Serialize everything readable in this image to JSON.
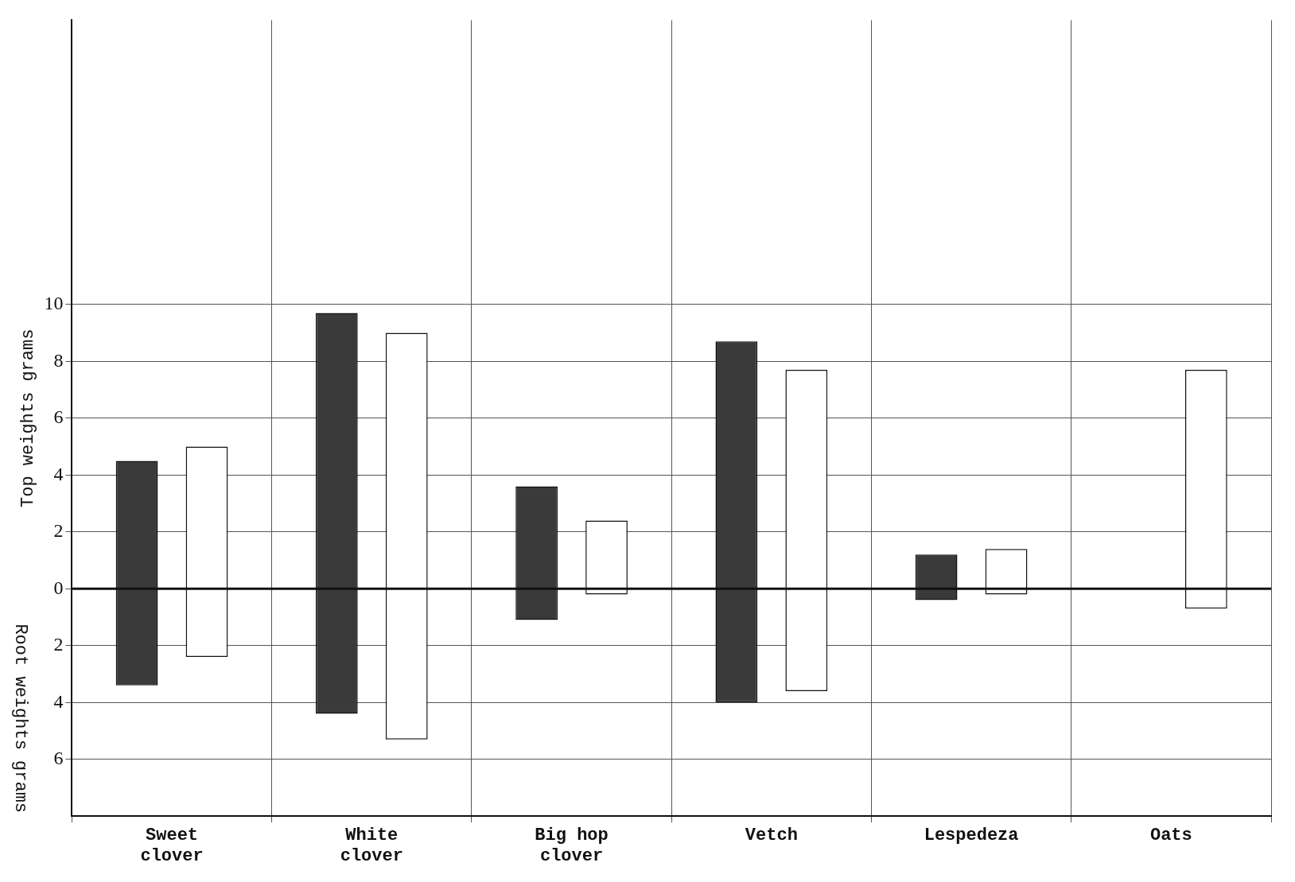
{
  "chart_data": {
    "type": "bar",
    "ylabel": "Top weights grams",
    "annotations": [
      "Root weights grams"
    ],
    "categories": [
      "Sweet clover",
      "White clover",
      "Big hop clover",
      "Vetch",
      "Lespedeza",
      "Oats"
    ],
    "series": [
      {
        "color": "#3a3a3a",
        "base": [
          -3.4,
          -4.4,
          -1.1,
          -4.0,
          -0.4,
          null
        ],
        "values": [
          7.9,
          14.1,
          4.7,
          12.7,
          1.6,
          null
        ]
      },
      {
        "color": "#ffffff",
        "base": [
          -2.4,
          -5.3,
          -0.2,
          -3.6,
          -0.2,
          -0.7
        ],
        "values": [
          7.4,
          14.3,
          2.6,
          11.3,
          1.6,
          8.4
        ]
      }
    ],
    "ylim": [
      -8,
      20
    ],
    "yticks": [
      {
        "value": -6,
        "label": "6"
      },
      {
        "value": -4,
        "label": "4"
      },
      {
        "value": -2,
        "label": "2"
      },
      0,
      2,
      4,
      6,
      8,
      10
    ],
    "ref_lines": [
      {
        "axis": "y",
        "value": 0
      }
    ],
    "grid": true
  }
}
